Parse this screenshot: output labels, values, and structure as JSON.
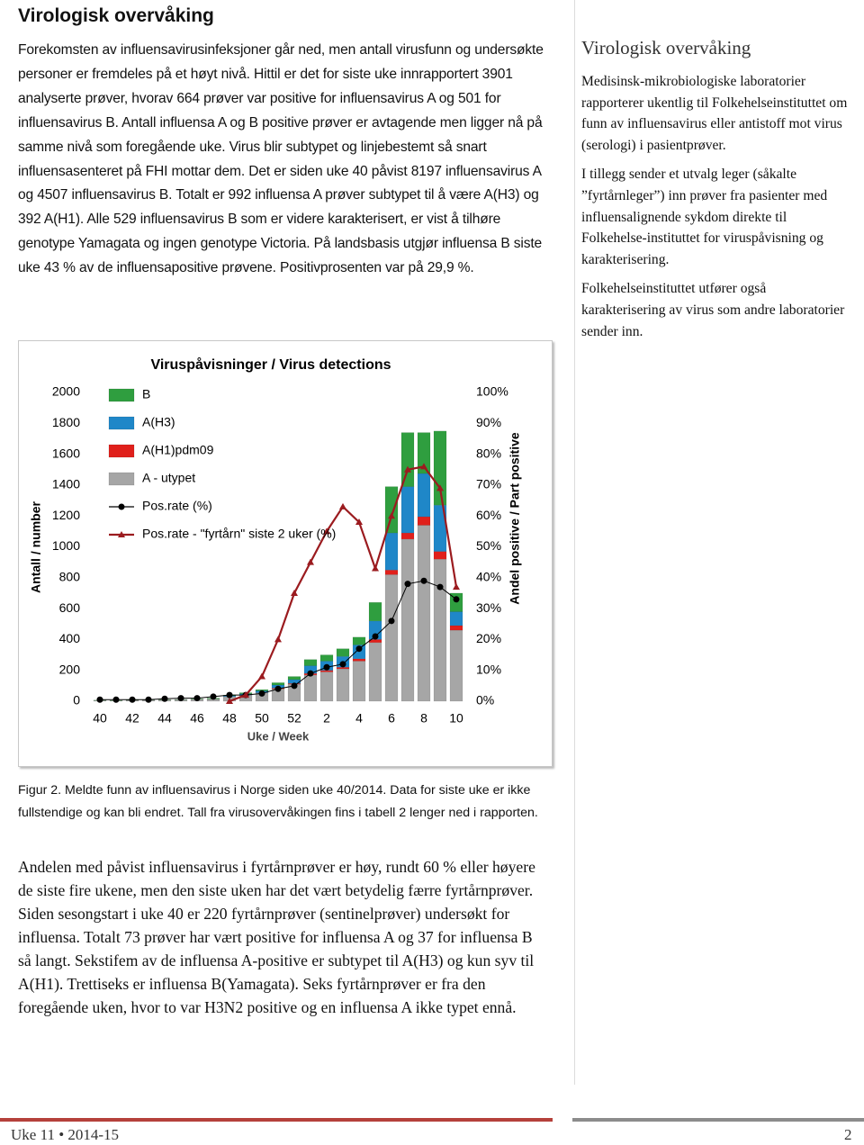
{
  "heading": "Virologisk overvåking",
  "intro": "Forekomsten av influensavirusinfeksjoner går ned, men antall virusfunn og undersøkte personer er fremdeles på et høyt nivå. Hittil er det for siste uke innrapportert 3901 analyserte prøver, hvorav 664 prøver var positive for influensavirus A og 501 for influensavirus B. Antall influensa A og B positive prøver er avtagende men ligger nå på samme nivå som foregående uke. Virus blir subtypet og linjebestemt så snart influensasenteret på FHI mottar dem. Det er siden uke 40 påvist 8197 influensavirus A og 4507 influensavirus B. Totalt er 992 influensa A prøver subtypet til å være A(H3) og 392 A(H1). Alle 529 influensavirus B som er videre karakterisert, er vist å tilhøre genotype Yamagata og ingen genotype Victoria.  På landsbasis utgjør influensa B siste uke 43 % av de influensapositive prøvene. Positivprosenten var på 29,9 %.",
  "chart_data": {
    "type": "bar",
    "stacked": true,
    "title": "Viruspåvisninger / Virus detections",
    "x_label": "Uke / Week",
    "y_label": "Antall / number",
    "y2_label": "Andel positive / Part positive",
    "categories": [
      "40",
      null,
      "42",
      null,
      "44",
      null,
      "46",
      null,
      "48",
      null,
      "50",
      null,
      "52",
      null,
      "2",
      null,
      "4",
      null,
      "6",
      null,
      "8",
      null,
      "10"
    ],
    "ylim": [
      0,
      2000
    ],
    "yticks": [
      0,
      200,
      400,
      600,
      800,
      1000,
      1200,
      1400,
      1600,
      1800,
      2000
    ],
    "y2lim": [
      0,
      100
    ],
    "y2ticks": [
      {
        "value": 0,
        "label": "0%"
      },
      {
        "value": 10,
        "label": "10%"
      },
      {
        "value": 20,
        "label": "20%"
      },
      {
        "value": 30,
        "label": "30%"
      },
      {
        "value": 40,
        "label": "40%"
      },
      {
        "value": 50,
        "label": "50%"
      },
      {
        "value": 60,
        "label": "60%"
      },
      {
        "value": 70,
        "label": "70%"
      },
      {
        "value": 80,
        "label": "80%"
      },
      {
        "value": 90,
        "label": "90%"
      },
      {
        "value": 100,
        "label": "100%"
      }
    ],
    "grid": false,
    "legend": "upper left",
    "series": [
      {
        "name": "B",
        "color": "#2f9e3f",
        "values": [
          2,
          2,
          2,
          2,
          2,
          2,
          3,
          5,
          5,
          7,
          8,
          15,
          20,
          40,
          40,
          50,
          50,
          120,
          300,
          350,
          265,
          480,
          120
        ]
      },
      {
        "name": "A(H3)",
        "color": "#1f87c8",
        "values": [
          0,
          0,
          0,
          0,
          0,
          0,
          0,
          0,
          5,
          8,
          12,
          20,
          25,
          50,
          60,
          70,
          90,
          120,
          240,
          300,
          280,
          300,
          90
        ]
      },
      {
        "name": "A(H1)pdm09",
        "color": "#e0201b",
        "values": [
          0,
          0,
          0,
          0,
          0,
          0,
          0,
          0,
          0,
          0,
          0,
          5,
          5,
          10,
          10,
          10,
          15,
          20,
          30,
          40,
          55,
          50,
          30
        ]
      },
      {
        "name": "A - utypet",
        "color": "#a6a6a6",
        "values": [
          5,
          4,
          6,
          8,
          8,
          10,
          12,
          15,
          30,
          40,
          55,
          80,
          110,
          170,
          190,
          210,
          260,
          380,
          820,
          1050,
          1140,
          920,
          460
        ]
      },
      {
        "name": "Pos.rate (%)",
        "type": "line",
        "axis": "y2",
        "marker": "circle",
        "color": "#000000",
        "values": [
          0.5,
          0.5,
          0.5,
          0.5,
          0.8,
          1,
          1,
          1.5,
          2,
          2,
          2.5,
          4,
          5,
          9,
          11,
          12,
          17,
          21,
          26,
          38,
          39,
          37,
          33
        ]
      },
      {
        "name": "Pos.rate - \"fyrtårn\" siste 2 uker (%)",
        "type": "line",
        "axis": "y2",
        "marker": "triangle",
        "color": "#9b1b1f",
        "values": [
          null,
          null,
          null,
          null,
          null,
          null,
          null,
          null,
          0,
          2,
          8,
          20,
          35,
          45,
          55,
          63,
          58,
          43,
          60,
          75,
          76,
          69,
          37
        ]
      }
    ]
  },
  "caption": "Figur 2. Meldte funn av influensavirus i Norge siden uke 40/2014. Data for siste uke er ikke fullstendige og kan bli endret. Tall fra virusovervåkingen fins i tabell 2 lenger ned i rapporten.",
  "body": "Andelen med påvist influensavirus i fyrtårnprøver er høy, rundt 60 % eller høyere de siste fire ukene, men den siste uken har det vært betydelig færre fyrtårnprøver. Siden sesongstart i uke 40 er 220 fyrtårnprøver (sentinelprøver) undersøkt for influensa. Totalt 73 prøver har vært positive for influensa A og 37 for influensa B så langt. Sekstifem av de influensa A-positive er subtypet til A(H3) og kun syv til A(H1). Trettiseks er influensa B(Yamagata). Seks fyrtårnprøver er fra den foregående uken, hvor to var H3N2 positive og en influensa A ikke typet ennå.",
  "sidebar": {
    "title": "Virologisk overvåking",
    "paragraphs": [
      "Medisinsk-mikrobiologiske laboratorier rapporterer ukentlig til Folkehelseinstituttet om funn av influensavirus eller antistoff mot virus (serologi) i pasientprøver.",
      "I tillegg sender et utvalg leger (såkalte ”fyrtårnleger”) inn prøver fra pasienter med influensalignende sykdom direkte til Folkehelse-instituttet for viruspåvisning og karakterisering.",
      "Folkehelseinstituttet utfører også karakterisering av virus som andre laboratorier sender inn."
    ]
  },
  "footer": {
    "issue": "Uke 11 • 2014-15",
    "page": "2"
  }
}
